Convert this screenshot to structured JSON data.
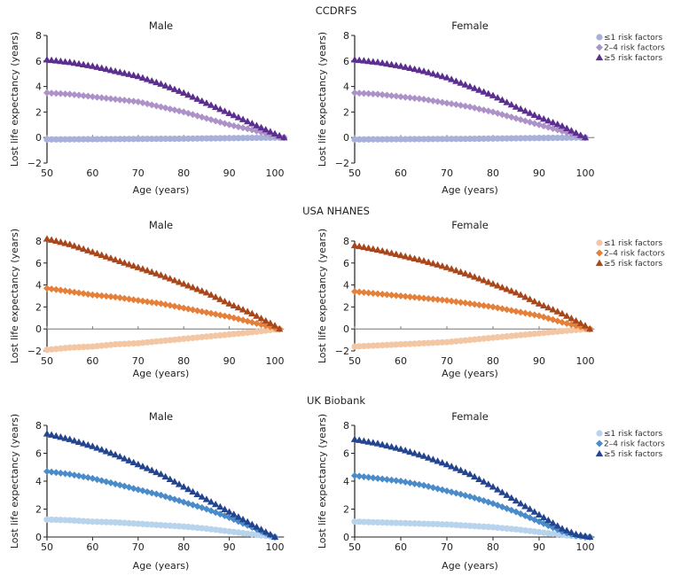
{
  "chart_data": {
    "type": "scatter",
    "x_ticks": [
      50,
      60,
      70,
      80,
      90,
      100
    ],
    "xlabel": "Age (years)",
    "ylabel": "Lost life expectancy (years)",
    "legend_position": "right",
    "legend_labels": [
      "≤1 risk factors",
      "2–4 risk factors",
      "≥5 risk factors"
    ],
    "legend_markers": [
      "circle",
      "diamond",
      "triangle"
    ],
    "groups": [
      {
        "title": "CCDRFS",
        "colors": [
          "#a8b1d9",
          "#ad92c8",
          "#5b2e8f"
        ],
        "yticks": [
          -2,
          0,
          2,
          4,
          6,
          8
        ],
        "ylim": [
          -2,
          8
        ],
        "panels": [
          {
            "title": "Male",
            "x": [
              50,
              55,
              60,
              65,
              70,
              75,
              80,
              85,
              90,
              95,
              100,
              102
            ],
            "series": [
              {
                "name": "≤1 risk factors",
                "values": [
                  -0.15,
                  -0.14,
                  -0.13,
                  -0.12,
                  -0.11,
                  -0.1,
                  -0.09,
                  -0.07,
                  -0.05,
                  -0.03,
                  -0.01,
                  0
                ]
              },
              {
                "name": "2–4 risk factors",
                "values": [
                  3.5,
                  3.4,
                  3.2,
                  3.0,
                  2.8,
                  2.4,
                  2.0,
                  1.5,
                  1.0,
                  0.6,
                  0.15,
                  0
                ]
              },
              {
                "name": "≥5 risk factors",
                "values": [
                  6.1,
                  5.9,
                  5.6,
                  5.2,
                  4.8,
                  4.2,
                  3.5,
                  2.7,
                  1.9,
                  1.1,
                  0.3,
                  0
                ]
              }
            ]
          },
          {
            "title": "Female",
            "x": [
              50,
              55,
              60,
              65,
              70,
              75,
              80,
              85,
              90,
              95,
              100
            ],
            "series": [
              {
                "name": "≤1 risk factors",
                "values": [
                  -0.15,
                  -0.14,
                  -0.13,
                  -0.12,
                  -0.11,
                  -0.1,
                  -0.08,
                  -0.06,
                  -0.04,
                  -0.02,
                  0
                ]
              },
              {
                "name": "2–4 risk factors",
                "values": [
                  3.5,
                  3.4,
                  3.2,
                  3.0,
                  2.7,
                  2.4,
                  2.0,
                  1.5,
                  1.0,
                  0.5,
                  0
                ]
              },
              {
                "name": "≥5 risk factors",
                "values": [
                  6.1,
                  5.9,
                  5.6,
                  5.2,
                  4.7,
                  4.0,
                  3.3,
                  2.4,
                  1.6,
                  0.9,
                  0
                ]
              }
            ]
          }
        ]
      },
      {
        "title": "USA NHANES",
        "colors": [
          "#f3c6a4",
          "#e5803a",
          "#a8471c"
        ],
        "yticks": [
          -2,
          0,
          2,
          4,
          6,
          8
        ],
        "ylim": [
          -2,
          8
        ],
        "panels": [
          {
            "title": "Male",
            "x": [
              50,
              55,
              60,
              65,
              70,
              75,
              80,
              85,
              90,
              95,
              100,
              101
            ],
            "series": [
              {
                "name": "≤1 risk factors",
                "values": [
                  -1.9,
                  -1.7,
                  -1.6,
                  -1.4,
                  -1.3,
                  -1.1,
                  -0.9,
                  -0.7,
                  -0.5,
                  -0.3,
                  -0.05,
                  0
                ]
              },
              {
                "name": "2–4 risk factors",
                "values": [
                  3.7,
                  3.4,
                  3.1,
                  2.9,
                  2.6,
                  2.3,
                  1.9,
                  1.5,
                  1.1,
                  0.6,
                  0.1,
                  0
                ]
              },
              {
                "name": "≥5 risk factors",
                "values": [
                  8.2,
                  7.7,
                  7.0,
                  6.3,
                  5.6,
                  4.9,
                  4.1,
                  3.3,
                  2.3,
                  1.4,
                  0.3,
                  0
                ]
              }
            ]
          },
          {
            "title": "Female",
            "x": [
              50,
              55,
              60,
              65,
              70,
              75,
              80,
              85,
              90,
              95,
              100,
              101
            ],
            "series": [
              {
                "name": "≤1 risk factors",
                "values": [
                  -1.6,
                  -1.5,
                  -1.4,
                  -1.3,
                  -1.2,
                  -1.0,
                  -0.8,
                  -0.6,
                  -0.4,
                  -0.2,
                  -0.02,
                  0
                ]
              },
              {
                "name": "2–4 risk factors",
                "values": [
                  3.4,
                  3.2,
                  3.0,
                  2.8,
                  2.6,
                  2.3,
                  2.0,
                  1.6,
                  1.2,
                  0.6,
                  0.1,
                  0
                ]
              },
              {
                "name": "≥5 risk factors",
                "values": [
                  7.6,
                  7.2,
                  6.7,
                  6.2,
                  5.6,
                  4.9,
                  4.1,
                  3.3,
                  2.3,
                  1.4,
                  0.3,
                  0
                ]
              }
            ]
          }
        ]
      },
      {
        "title": "UK Biobank",
        "colors": [
          "#b8d3ec",
          "#4a8bc9",
          "#23448f"
        ],
        "yticks": [
          0,
          2,
          4,
          6,
          8
        ],
        "ylim": [
          0,
          8
        ],
        "panels": [
          {
            "title": "Male",
            "x": [
              50,
              55,
              60,
              65,
              70,
              75,
              80,
              85,
              90,
              95,
              100
            ],
            "series": [
              {
                "name": "≤1 risk factors",
                "values": [
                  1.25,
                  1.2,
                  1.1,
                  1.05,
                  0.95,
                  0.85,
                  0.75,
                  0.6,
                  0.4,
                  0.2,
                  0
                ]
              },
              {
                "name": "2–4 risk factors",
                "values": [
                  4.7,
                  4.5,
                  4.2,
                  3.8,
                  3.4,
                  3.0,
                  2.5,
                  2.0,
                  1.4,
                  0.7,
                  0
                ]
              },
              {
                "name": "≥5 risk factors",
                "values": [
                  7.4,
                  7.0,
                  6.5,
                  5.9,
                  5.2,
                  4.5,
                  3.6,
                  2.7,
                  1.8,
                  0.9,
                  0
                ]
              }
            ]
          },
          {
            "title": "Female",
            "x": [
              50,
              55,
              60,
              65,
              70,
              75,
              80,
              85,
              90,
              95,
              98,
              101
            ],
            "series": [
              {
                "name": "≤1 risk factors",
                "values": [
                  1.1,
                  1.05,
                  1.0,
                  0.95,
                  0.9,
                  0.8,
                  0.7,
                  0.55,
                  0.35,
                  0.15,
                  0.05,
                  0
                ]
              },
              {
                "name": "2–4 risk factors",
                "values": [
                  4.4,
                  4.2,
                  4.0,
                  3.7,
                  3.3,
                  2.9,
                  2.4,
                  1.8,
                  1.1,
                  0.4,
                  0.1,
                  0
                ]
              },
              {
                "name": "≥5 risk factors",
                "values": [
                  7.0,
                  6.7,
                  6.3,
                  5.8,
                  5.2,
                  4.5,
                  3.6,
                  2.6,
                  1.6,
                  0.6,
                  0.2,
                  0
                ]
              }
            ]
          }
        ]
      }
    ]
  }
}
